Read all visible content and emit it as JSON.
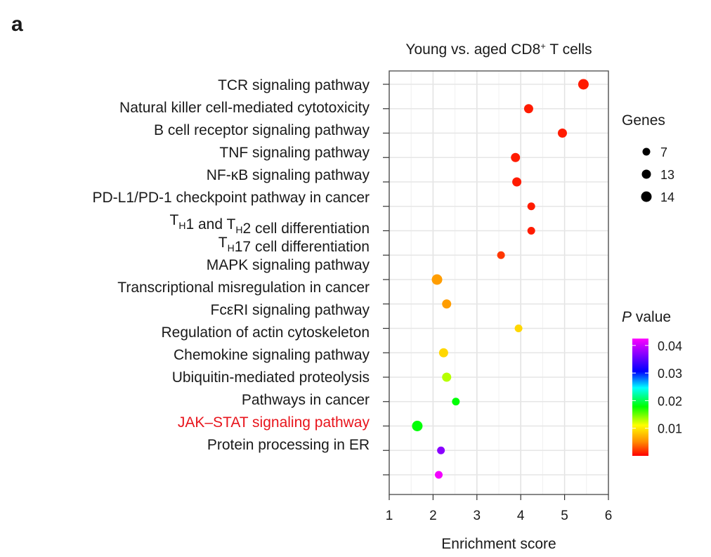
{
  "panel_letter": "a",
  "chart_data": {
    "type": "scatter",
    "title": "Young vs. aged CD8⁺ T cells",
    "xlabel": "Enrichment score",
    "ylabel": "",
    "xlim": [
      1,
      6
    ],
    "xticks": [
      1,
      2,
      3,
      4,
      5,
      6
    ],
    "grid": true,
    "categories": [
      {
        "label": "TCR signaling pathway",
        "highlight": false
      },
      {
        "label": "Natural killer cell-mediated cytotoxicity",
        "highlight": false
      },
      {
        "label": "B cell receptor signaling pathway",
        "highlight": false
      },
      {
        "label": "TNF signaling pathway",
        "highlight": false
      },
      {
        "label": "NF-κB signaling pathway",
        "highlight": false
      },
      {
        "label": "PD-L1/PD-1 checkpoint pathway in cancer",
        "highlight": false
      },
      {
        "label": "T_H1 and T_H2 cell differentiation",
        "highlight": false
      },
      {
        "label": "T_H17 cell differentiation",
        "highlight": false
      },
      {
        "label": "MAPK signaling pathway",
        "highlight": false
      },
      {
        "label": "Transcriptional misregulation in cancer",
        "highlight": false
      },
      {
        "label": "FcεRI signaling pathway",
        "highlight": false
      },
      {
        "label": "Regulation of actin cytoskeleton",
        "highlight": false
      },
      {
        "label": "Chemokine signaling pathway",
        "highlight": false
      },
      {
        "label": "Ubiquitin-mediated proteolysis",
        "highlight": false
      },
      {
        "label": "Pathways in cancer",
        "highlight": false
      },
      {
        "label": "JAK–STAT signaling pathway",
        "highlight": true
      },
      {
        "label": "Protein processing in ER",
        "highlight": false
      }
    ],
    "highlight_color": "#e8141c",
    "points": [
      {
        "enrichment": 5.43,
        "pvalue": 0.001,
        "genes": 14
      },
      {
        "enrichment": 4.18,
        "pvalue": 0.001,
        "genes": 13
      },
      {
        "enrichment": 4.95,
        "pvalue": 0.001,
        "genes": 13
      },
      {
        "enrichment": 3.88,
        "pvalue": 0.001,
        "genes": 13
      },
      {
        "enrichment": 3.91,
        "pvalue": 0.001,
        "genes": 13
      },
      {
        "enrichment": 4.24,
        "pvalue": 0.001,
        "genes": 7
      },
      {
        "enrichment": 4.24,
        "pvalue": 0.001,
        "genes": 7
      },
      {
        "enrichment": 3.55,
        "pvalue": 0.002,
        "genes": 7
      },
      {
        "enrichment": 2.09,
        "pvalue": 0.006,
        "genes": 14
      },
      {
        "enrichment": 2.31,
        "pvalue": 0.006,
        "genes": 13
      },
      {
        "enrichment": 3.95,
        "pvalue": 0.009,
        "genes": 7
      },
      {
        "enrichment": 2.24,
        "pvalue": 0.009,
        "genes": 13
      },
      {
        "enrichment": 2.31,
        "pvalue": 0.013,
        "genes": 13
      },
      {
        "enrichment": 2.52,
        "pvalue": 0.018,
        "genes": 7
      },
      {
        "enrichment": 1.64,
        "pvalue": 0.018,
        "genes": 14
      },
      {
        "enrichment": 2.18,
        "pvalue": 0.037,
        "genes": 7
      },
      {
        "enrichment": 2.13,
        "pvalue": 0.042,
        "genes": 7
      }
    ],
    "size_legend": {
      "title": "Genes",
      "entries": [
        7,
        13,
        14
      ]
    },
    "color_legend": {
      "title_italic": "P",
      "title_rest": " value",
      "ticks": [
        "0.04",
        "0.03",
        "0.02",
        "0.01"
      ],
      "tick_values": [
        0.04,
        0.03,
        0.02,
        0.01
      ],
      "range": [
        0.0,
        0.0425
      ],
      "colors": [
        "#ff0000",
        "#ff8c00",
        "#ffff00",
        "#00ff00",
        "#00ffff",
        "#0000ff",
        "#8000ff",
        "#ff00ff"
      ]
    }
  }
}
